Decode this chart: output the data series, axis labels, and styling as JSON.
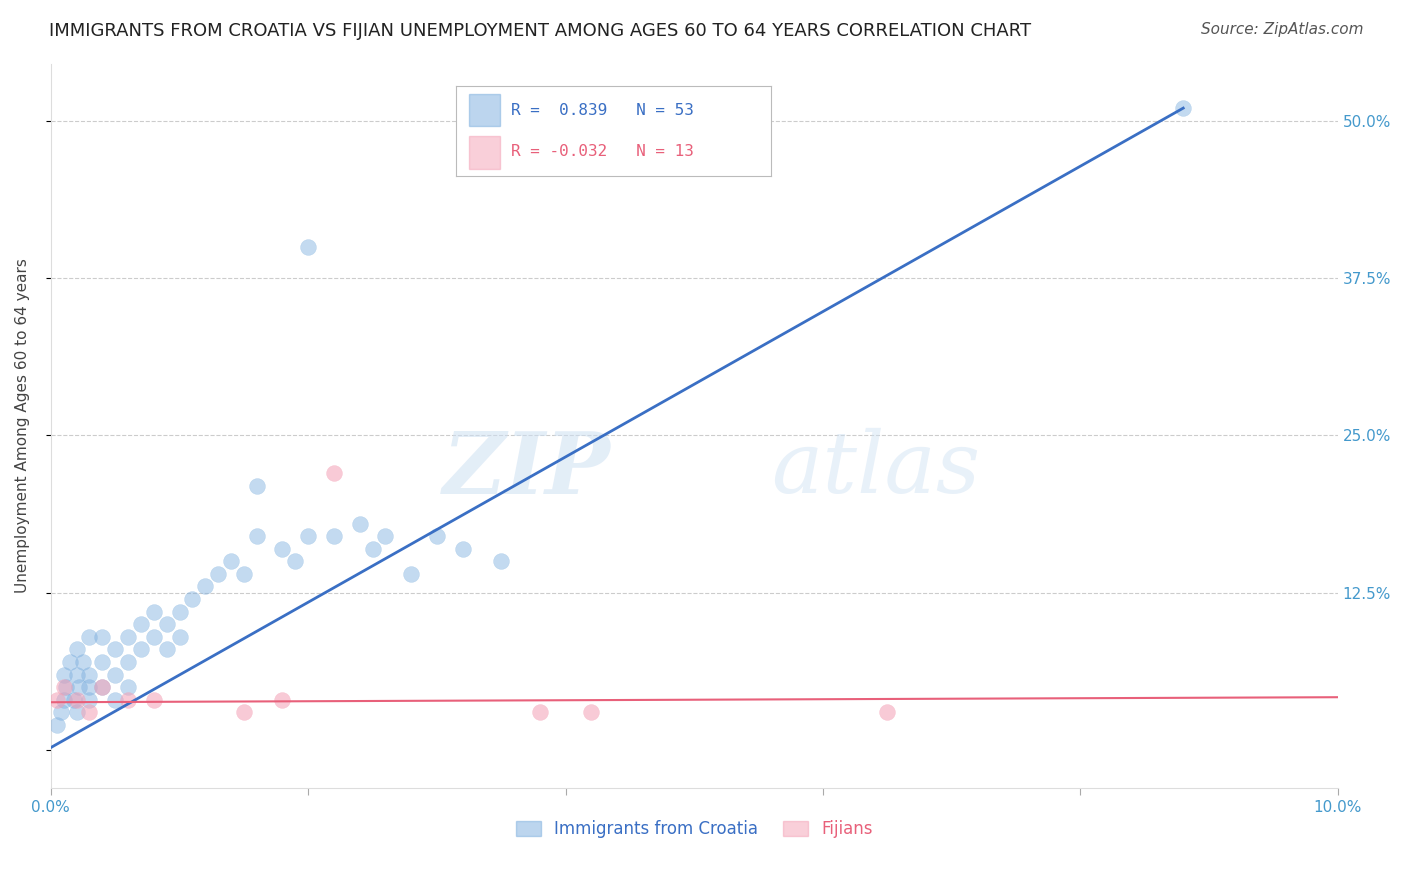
{
  "title": "IMMIGRANTS FROM CROATIA VS FIJIAN UNEMPLOYMENT AMONG AGES 60 TO 64 YEARS CORRELATION CHART",
  "source": "Source: ZipAtlas.com",
  "ylabel": "Unemployment Among Ages 60 to 64 years",
  "xlim": [
    0.0,
    0.1
  ],
  "ylim": [
    -0.03,
    0.545
  ],
  "xtick_pos": [
    0.0,
    0.02,
    0.04,
    0.06,
    0.08,
    0.1
  ],
  "xtick_labels": [
    "0.0%",
    "",
    "",
    "",
    "",
    "10.0%"
  ],
  "ytick_pos": [
    0.0,
    0.125,
    0.25,
    0.375,
    0.5
  ],
  "ytick_labels_right": [
    "",
    "12.5%",
    "25.0%",
    "37.5%",
    "50.0%"
  ],
  "grid_color": "#cccccc",
  "bg_color": "#ffffff",
  "blue_color": "#7aadde",
  "pink_color": "#f4a0b5",
  "blue_line_color": "#3a6fc4",
  "pink_line_color": "#e8607a",
  "R_blue": 0.839,
  "N_blue": 53,
  "R_pink": -0.032,
  "N_pink": 13,
  "legend_label_blue": "Immigrants from Croatia",
  "legend_label_pink": "Fijians",
  "blue_x": [
    0.0005,
    0.0008,
    0.001,
    0.001,
    0.0012,
    0.0015,
    0.0018,
    0.002,
    0.002,
    0.002,
    0.0022,
    0.0025,
    0.003,
    0.003,
    0.003,
    0.003,
    0.004,
    0.004,
    0.004,
    0.005,
    0.005,
    0.005,
    0.006,
    0.006,
    0.006,
    0.007,
    0.007,
    0.008,
    0.008,
    0.009,
    0.009,
    0.01,
    0.01,
    0.011,
    0.012,
    0.013,
    0.014,
    0.015,
    0.016,
    0.018,
    0.019,
    0.02,
    0.022,
    0.024,
    0.025,
    0.026,
    0.028,
    0.03,
    0.032,
    0.035,
    0.016,
    0.088,
    0.02
  ],
  "blue_y": [
    0.02,
    0.03,
    0.04,
    0.06,
    0.05,
    0.07,
    0.04,
    0.06,
    0.08,
    0.03,
    0.05,
    0.07,
    0.04,
    0.06,
    0.09,
    0.05,
    0.07,
    0.09,
    0.05,
    0.08,
    0.06,
    0.04,
    0.09,
    0.07,
    0.05,
    0.1,
    0.08,
    0.11,
    0.09,
    0.1,
    0.08,
    0.11,
    0.09,
    0.12,
    0.13,
    0.14,
    0.15,
    0.14,
    0.17,
    0.16,
    0.15,
    0.17,
    0.17,
    0.18,
    0.16,
    0.17,
    0.14,
    0.17,
    0.16,
    0.15,
    0.21,
    0.51,
    0.4
  ],
  "pink_x": [
    0.0005,
    0.001,
    0.002,
    0.003,
    0.004,
    0.006,
    0.008,
    0.015,
    0.018,
    0.022,
    0.038,
    0.042,
    0.065
  ],
  "pink_y": [
    0.04,
    0.05,
    0.04,
    0.03,
    0.05,
    0.04,
    0.04,
    0.03,
    0.04,
    0.22,
    0.03,
    0.03,
    0.03
  ],
  "pink_line_x": [
    0.0,
    0.1
  ],
  "pink_line_y": [
    0.038,
    0.042
  ],
  "blue_line_x": [
    0.0,
    0.088
  ],
  "blue_line_y": [
    0.002,
    0.51
  ],
  "watermark_zip": "ZIP",
  "watermark_atlas": "atlas",
  "title_fontsize": 13,
  "source_fontsize": 11,
  "axis_label_fontsize": 11,
  "tick_fontsize": 11,
  "legend_fontsize": 12
}
